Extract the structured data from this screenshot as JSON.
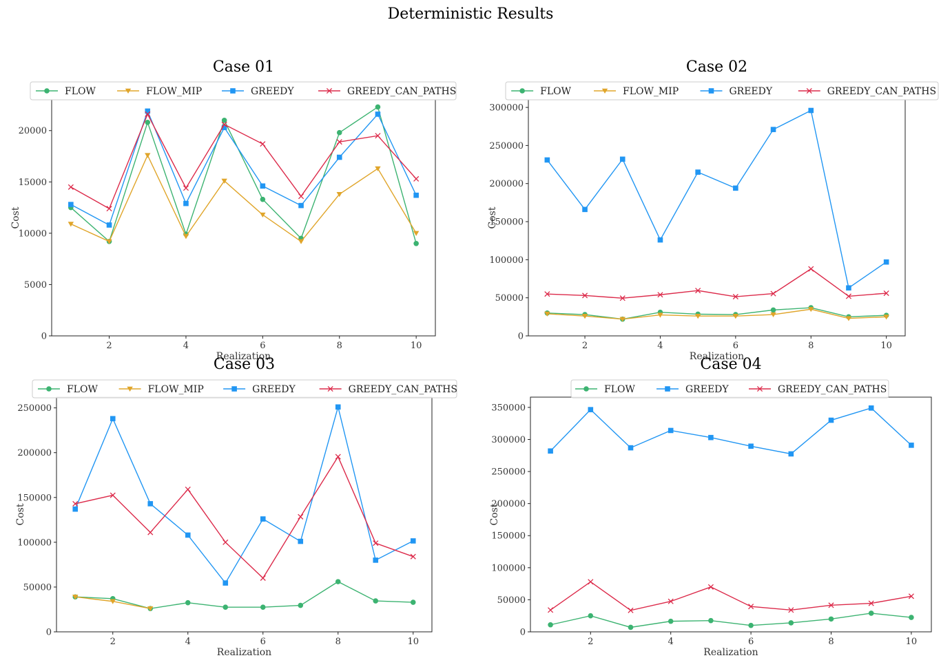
{
  "figure": {
    "title": "Deterministic Results"
  },
  "chart_data": [
    {
      "type": "line",
      "title": "Case 01",
      "xlabel": "Realization",
      "ylabel": "Cost",
      "x": [
        1,
        2,
        3,
        4,
        5,
        6,
        7,
        8,
        9,
        10
      ],
      "xticks": [
        2,
        4,
        6,
        8,
        10
      ],
      "xlim": [
        0.5,
        10.5
      ],
      "ylim": [
        0,
        23000
      ],
      "yticks": [
        0,
        5000,
        10000,
        15000,
        20000
      ],
      "legend": "top",
      "grid": false,
      "series": [
        {
          "name": "FLOW",
          "color": "#3cb371",
          "marker": "circle",
          "values": [
            12500,
            9200,
            20800,
            9900,
            21000,
            13300,
            9500,
            19800,
            22300,
            9000
          ]
        },
        {
          "name": "FLOW_MIP",
          "color": "#e0a52a",
          "marker": "triangle-down",
          "values": [
            10900,
            9200,
            17600,
            9700,
            15100,
            11800,
            9200,
            13800,
            16300,
            10000
          ]
        },
        {
          "name": "GREEDY",
          "color": "#2196f3",
          "marker": "square",
          "values": [
            12800,
            10800,
            21900,
            12900,
            20300,
            14600,
            12700,
            17400,
            21600,
            13700
          ]
        },
        {
          "name": "GREEDY_CAN_PATHS",
          "color": "#dc2a4a",
          "marker": "x",
          "values": [
            14500,
            12400,
            21600,
            14400,
            20600,
            18700,
            13600,
            18900,
            19500,
            15300
          ]
        }
      ]
    },
    {
      "type": "line",
      "title": "Case 02",
      "xlabel": "Realization",
      "ylabel": "Cost",
      "x": [
        1,
        2,
        3,
        4,
        5,
        6,
        7,
        8,
        9,
        10
      ],
      "xticks": [
        2,
        4,
        6,
        8,
        10
      ],
      "xlim": [
        0.5,
        10.5
      ],
      "ylim": [
        0,
        310000
      ],
      "yticks": [
        0,
        50000,
        100000,
        150000,
        200000,
        250000,
        300000
      ],
      "legend": "top",
      "grid": false,
      "series": [
        {
          "name": "FLOW",
          "color": "#3cb371",
          "marker": "circle",
          "values": [
            30000,
            28000,
            22000,
            31000,
            28500,
            28000,
            34000,
            37000,
            25000,
            27000
          ]
        },
        {
          "name": "FLOW_MIP",
          "color": "#e0a52a",
          "marker": "triangle-down",
          "values": [
            29000,
            26000,
            22000,
            27500,
            26000,
            26000,
            28000,
            35000,
            23000,
            25000
          ]
        },
        {
          "name": "GREEDY",
          "color": "#2196f3",
          "marker": "square",
          "values": [
            231000,
            166000,
            232000,
            126000,
            215000,
            194000,
            271000,
            296000,
            63000,
            97000
          ]
        },
        {
          "name": "GREEDY_CAN_PATHS",
          "color": "#dc2a4a",
          "marker": "x",
          "values": [
            55000,
            53000,
            49500,
            54000,
            59500,
            51500,
            55500,
            88000,
            52000,
            56000
          ]
        }
      ]
    },
    {
      "type": "line",
      "title": "Case 03",
      "xlabel": "Realization",
      "ylabel": "Cost",
      "x": [
        1,
        2,
        3,
        4,
        5,
        6,
        7,
        8,
        9,
        10
      ],
      "xticks": [
        2,
        4,
        6,
        8,
        10
      ],
      "xlim": [
        0.5,
        10.5
      ],
      "ylim": [
        0,
        262000
      ],
      "yticks": [
        0,
        50000,
        100000,
        150000,
        200000,
        250000
      ],
      "legend": "top",
      "grid": false,
      "series": [
        {
          "name": "FLOW",
          "color": "#3cb371",
          "marker": "circle",
          "values": [
            39000,
            37000,
            26000,
            32500,
            27500,
            27500,
            29500,
            56000,
            34500,
            33000
          ]
        },
        {
          "name": "FLOW_MIP",
          "color": "#e0a52a",
          "marker": "triangle-down",
          "values": [
            39000,
            34000,
            26000,
            null,
            null,
            null,
            null,
            null,
            null,
            null
          ]
        },
        {
          "name": "GREEDY",
          "color": "#2196f3",
          "marker": "square",
          "values": [
            137000,
            238000,
            143000,
            108000,
            54500,
            126000,
            101000,
            251000,
            80000,
            101500
          ]
        },
        {
          "name": "GREEDY_CAN_PATHS",
          "color": "#dc2a4a",
          "marker": "x",
          "values": [
            143000,
            152500,
            111000,
            159000,
            100000,
            60000,
            128500,
            195500,
            99000,
            84000
          ]
        }
      ]
    },
    {
      "type": "line",
      "title": "Case 04",
      "xlabel": "Realization",
      "ylabel": "Cost",
      "x": [
        1,
        2,
        3,
        4,
        5,
        6,
        7,
        8,
        9,
        10
      ],
      "xticks": [
        2,
        4,
        6,
        8,
        10
      ],
      "xlim": [
        0.5,
        10.5
      ],
      "ylim": [
        0,
        366000
      ],
      "yticks": [
        0,
        50000,
        100000,
        150000,
        200000,
        250000,
        300000,
        350000
      ],
      "legend": "top",
      "grid": false,
      "series": [
        {
          "name": "FLOW",
          "color": "#3cb371",
          "marker": "circle",
          "values": [
            11000,
            25000,
            7000,
            16500,
            17500,
            10000,
            14000,
            20000,
            29000,
            22500
          ]
        },
        {
          "name": "GREEDY",
          "color": "#2196f3",
          "marker": "square",
          "values": [
            282000,
            346500,
            287000,
            314000,
            303000,
            289500,
            277500,
            330000,
            349000,
            291000
          ]
        },
        {
          "name": "GREEDY_CAN_PATHS",
          "color": "#dc2a4a",
          "marker": "x",
          "values": [
            34000,
            78000,
            33500,
            47500,
            70000,
            39500,
            34000,
            41500,
            44500,
            55500
          ]
        }
      ]
    }
  ]
}
